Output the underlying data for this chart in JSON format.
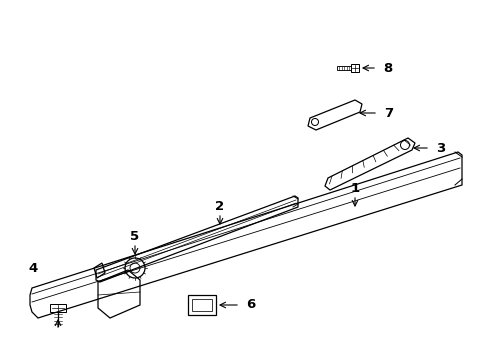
{
  "background_color": "#ffffff",
  "figure_size": [
    4.89,
    3.6
  ],
  "dpi": 100,
  "line_color": "#000000",
  "lw": 0.9
}
